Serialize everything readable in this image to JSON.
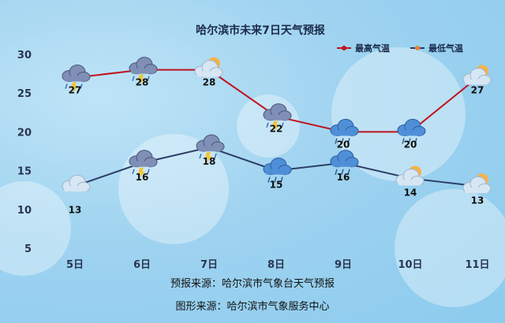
{
  "chart_data": {
    "type": "line",
    "title": "哈尔滨市未来7日天气预报",
    "categories": [
      "5日",
      "6日",
      "7日",
      "8日",
      "9日",
      "10日",
      "11日"
    ],
    "ylim": [
      5,
      30
    ],
    "yticks": [
      30,
      25,
      20,
      15,
      10,
      5
    ],
    "grid": false,
    "legend_position": "top-right",
    "series": [
      {
        "name": "最高气温",
        "color": "#c0121e",
        "values": [
          27,
          28,
          28,
          22,
          20,
          20,
          27
        ],
        "icons": [
          "thunderstorm-icon",
          "thunderstorm-icon",
          "partly-cloudy-icon",
          "thunderstorm-icon",
          "rain-icon",
          "rain-icon",
          "partly-cloudy-icon"
        ]
      },
      {
        "name": "最低气温",
        "color": "#2c3e66",
        "values": [
          13,
          16,
          18,
          15,
          16,
          14,
          13
        ],
        "icons": [
          "cloudy-icon",
          "thunderstorm-icon",
          "thunderstorm-icon",
          "rain-icon",
          "rain-icon",
          "partly-cloudy-icon",
          "partly-cloudy-icon"
        ]
      }
    ]
  },
  "footer": {
    "source": "预报来源：哈尔滨市气象台天气预报",
    "graphic": "图形来源：哈尔滨市气象服务中心"
  }
}
